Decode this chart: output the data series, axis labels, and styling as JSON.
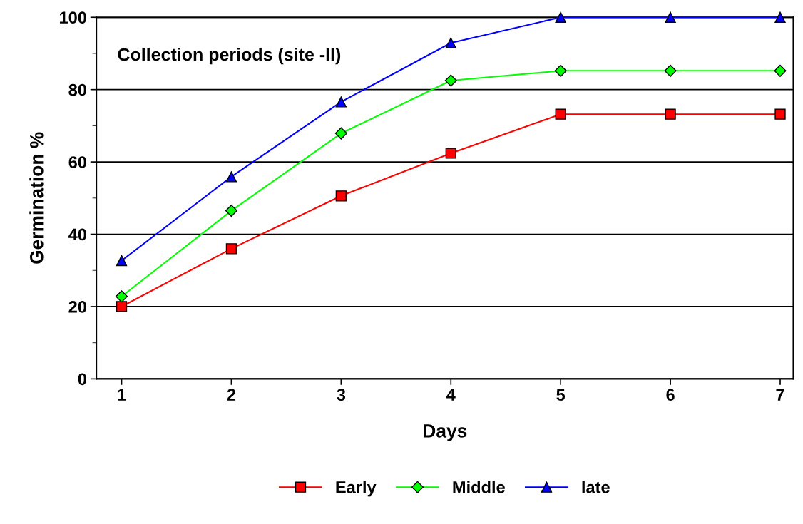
{
  "chart_data": {
    "type": "line",
    "xlabel": "Days",
    "ylabel": "Germination %",
    "annotations": [
      "Collection periods (site -II)"
    ],
    "x": [
      1,
      2,
      3,
      4,
      5,
      6,
      7
    ],
    "series": [
      {
        "name": "Early",
        "color": "#ff0000",
        "marker": "square",
        "values": [
          20,
          36,
          50.6,
          62.4,
          73.2,
          73.2,
          73.2
        ]
      },
      {
        "name": "Middle",
        "color": "#00ff00",
        "marker": "diamond",
        "values": [
          22.8,
          46.5,
          67.9,
          82.5,
          85.2,
          85.2,
          85.2
        ]
      },
      {
        "name": "late",
        "color": "#0000ff",
        "marker": "triangle",
        "values": [
          32.7,
          55.9,
          76.6,
          92.9,
          100,
          100,
          100
        ]
      }
    ],
    "xlim": [
      0.77,
      7.12
    ],
    "xticks": [
      1,
      2,
      3,
      4,
      5,
      6,
      7
    ],
    "ylim": [
      0,
      100
    ],
    "yticks": [
      0,
      20,
      40,
      60,
      80,
      100
    ],
    "grid": "y",
    "legend": "bottom"
  }
}
